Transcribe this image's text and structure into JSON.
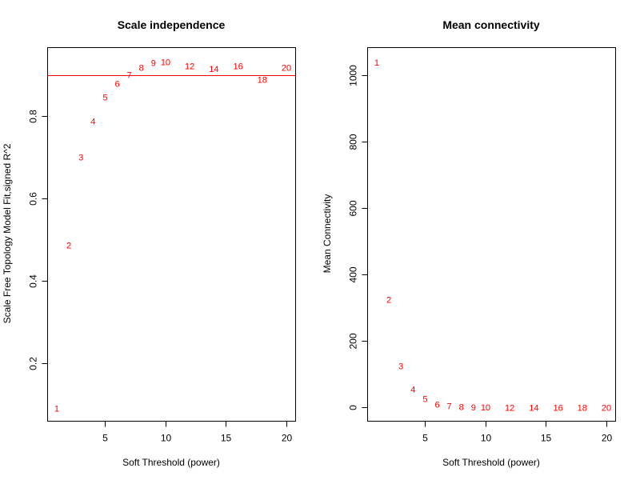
{
  "chart_data": [
    {
      "type": "scatter",
      "title": "Scale independence",
      "xlabel": "Soft Threshold (power)",
      "ylabel": "Scale Free Topology Model Fit,signed R^2",
      "xlim": [
        0.24,
        20.76
      ],
      "ylim": [
        0.06,
        0.967
      ],
      "xticks": [
        5,
        10,
        15,
        20
      ],
      "xtick_labels": [
        "5",
        "10",
        "15",
        "20"
      ],
      "yticks": [
        0.2,
        0.4,
        0.6,
        0.8
      ],
      "ytick_labels": [
        "0.2",
        "0.4",
        "0.6",
        "0.8"
      ],
      "grid": false,
      "marker": "text-label",
      "point_color": "#ff0000",
      "x": [
        1,
        2,
        3,
        4,
        5,
        6,
        7,
        8,
        9,
        10,
        12,
        14,
        16,
        18,
        20
      ],
      "labels": [
        "1",
        "2",
        "3",
        "4",
        "5",
        "6",
        "7",
        "8",
        "9",
        "10",
        "12",
        "14",
        "16",
        "18",
        "20"
      ],
      "y": [
        0.091,
        0.487,
        0.701,
        0.788,
        0.847,
        0.88,
        0.901,
        0.918,
        0.93,
        0.932,
        0.922,
        0.916,
        0.922,
        0.889,
        0.918
      ],
      "hline": {
        "value": 0.9,
        "color": "#ff0000"
      }
    },
    {
      "type": "scatter",
      "title": "Mean connectivity",
      "xlabel": "Soft Threshold (power)",
      "ylabel": "Mean Connectivity",
      "xlim": [
        0.24,
        20.76
      ],
      "ylim": [
        -41,
        1082
      ],
      "xticks": [
        5,
        10,
        15,
        20
      ],
      "xtick_labels": [
        "5",
        "10",
        "15",
        "20"
      ],
      "yticks": [
        0,
        200,
        400,
        600,
        800,
        1000
      ],
      "ytick_labels": [
        "0",
        "200",
        "400",
        "600",
        "800",
        "1000"
      ],
      "grid": false,
      "marker": "text-label",
      "point_color": "#ff0000",
      "x": [
        1,
        2,
        3,
        4,
        5,
        6,
        7,
        8,
        9,
        10,
        12,
        14,
        16,
        18,
        20
      ],
      "labels": [
        "1",
        "2",
        "3",
        "4",
        "5",
        "6",
        "7",
        "8",
        "9",
        "10",
        "12",
        "14",
        "16",
        "18",
        "20"
      ],
      "y": [
        1038,
        324,
        125,
        55,
        26,
        10,
        5,
        2,
        1,
        1,
        0,
        0,
        0,
        0,
        0
      ]
    }
  ]
}
